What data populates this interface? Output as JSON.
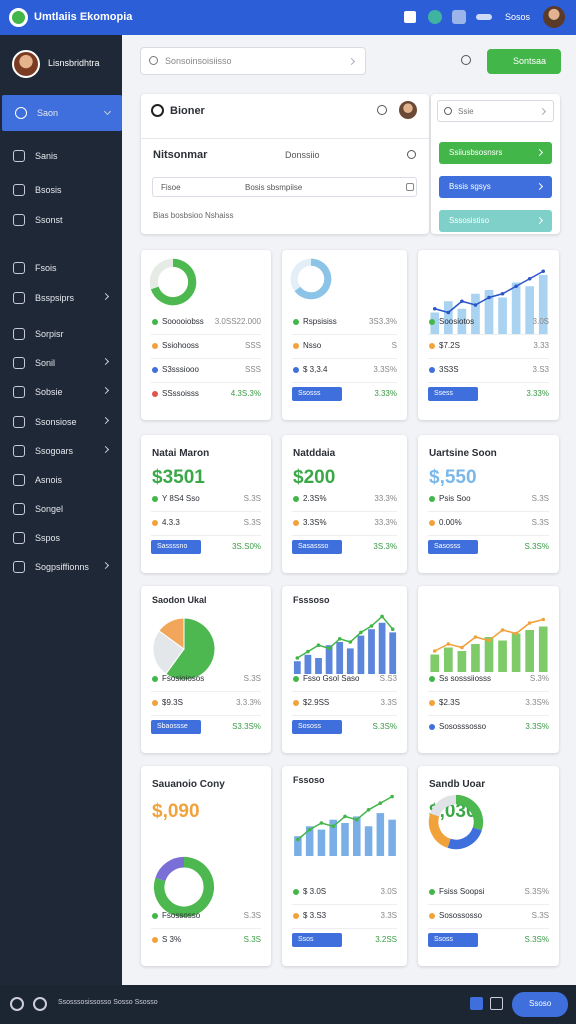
{
  "topbar": {
    "title": "Umtlaiis Ekomopia",
    "user_chip": "Sosos"
  },
  "profile": {
    "name": "Lisnsbridhtra"
  },
  "menu": [
    "Saon",
    "Sanis",
    "Bsosis",
    "Ssonst",
    "Fsois",
    "Bsspsiprs",
    "Sorpisr",
    "Sonil",
    "Sobsie",
    "Ssonsiose",
    "Ssogoars",
    "Asnois",
    "Songel",
    "Sspos",
    "Sogpsiffionns"
  ],
  "search": {
    "placeholder": "Sonsoinsoisiisso",
    "button": "Sontsaa"
  },
  "panel": {
    "title": "Bioner",
    "row_label": "Nitsonmar",
    "row_value": "Donssiio",
    "filter_left": "Fisoe",
    "filter_mid": "Bosis sbsmpiise",
    "footer": "Bias bosbsioo Nshaiss"
  },
  "side_panel": {
    "search": "Ssie",
    "buttons": [
      {
        "label": "Ssiiusbsosnsrs",
        "color": "#43b649"
      },
      {
        "label": "Bssis sgsys",
        "color": "#3f6fdc"
      },
      {
        "label": "Sssosistiso",
        "color": "#7fd0c8"
      }
    ]
  },
  "cards": [
    {
      "chart": {
        "kind": "donut",
        "values": [
          70,
          30
        ],
        "colors": [
          "#4cb84f",
          "#e6ebe6"
        ]
      },
      "rows": [
        {
          "label": "Sooooiobss",
          "value": "3.0SS22.000"
        },
        {
          "label": "Ssiohooss",
          "value": "SSS"
        },
        {
          "label": "S3sssiooo",
          "value": "SSS"
        },
        {
          "label": "SSssoisss",
          "value": "4.3S.3%"
        }
      ]
    },
    {
      "chart": {
        "kind": "donut",
        "values": [
          65,
          35
        ],
        "colors": [
          "#8cc4e8",
          "#e3eef6"
        ]
      },
      "rows": [
        {
          "label": "Rspsisiss",
          "value": "3S3.3%"
        },
        {
          "label": "Nsso",
          "value": "S"
        },
        {
          "label": "$ 3,3.4",
          "value": "3.3S%"
        },
        {
          "label": "Ssosss",
          "value": "3.33%",
          "pill": true
        }
      ]
    },
    {
      "chart": {
        "kind": "bars",
        "values": [
          30,
          45,
          35,
          55,
          60,
          50,
          70,
          65,
          80
        ],
        "color": "#a9d3f0",
        "line": [
          35,
          30,
          45,
          40,
          50,
          55,
          65,
          75,
          85
        ],
        "line_color": "#2b56c9"
      },
      "rows": [
        {
          "label": "Soosiotos",
          "value": "3.0S"
        },
        {
          "label": "$7.2S",
          "value": "3.33"
        },
        {
          "label": "3S3S",
          "value": "3.S3"
        },
        {
          "label": "Ssess",
          "value": "3.33%",
          "pill": true
        }
      ]
    },
    {
      "title": "Natai Maron",
      "big": "$3501",
      "big_color": "#3aa847",
      "rows": [
        {
          "label": "Y 8S4 Sso",
          "value": "S.3S"
        },
        {
          "label": "4.3.3",
          "value": "S.3S"
        },
        {
          "label": "Sassssno",
          "value": "3S.S0%",
          "pill": true
        }
      ]
    },
    {
      "title": "Natddaia",
      "big": "$200",
      "big_color": "#3aa847",
      "rows": [
        {
          "label": "2.3S%",
          "value": "33.3%"
        },
        {
          "label": "3.3S%",
          "value": "33.3%"
        },
        {
          "label": "Sasassso",
          "value": "3S.3%",
          "pill": true
        }
      ]
    },
    {
      "title": "Uartsine Soon",
      "big": "$,550",
      "big_color": "#7ab8ea",
      "rows": [
        {
          "label": "Psis Soo",
          "value": "S.3S"
        },
        {
          "label": "0.00%",
          "value": "S.3S"
        },
        {
          "label": "Sasosss",
          "value": "S.3S%",
          "pill": true
        }
      ]
    },
    {
      "title": "Saodon Ukal",
      "chart": {
        "kind": "pie",
        "values": [
          60,
          25,
          15
        ],
        "colors": [
          "#4cb84f",
          "#e4e7ea",
          "#f2a65a"
        ]
      },
      "rows": [
        {
          "label": "Fsosioiosos",
          "value": "S.3S"
        },
        {
          "label": "$9.3S",
          "value": "3.3.3%"
        },
        {
          "label": "Sbaossse",
          "value": "S3.3S%",
          "pill": true
        }
      ]
    },
    {
      "title": "Fsssoso",
      "chart": {
        "kind": "bars",
        "values": [
          20,
          30,
          25,
          45,
          50,
          40,
          60,
          70,
          80,
          65
        ],
        "color": "#5b86dc",
        "line": [
          25,
          35,
          45,
          40,
          55,
          50,
          65,
          75,
          90,
          70
        ],
        "line_color": "#43b649"
      },
      "rows": [
        {
          "label": "Fsso Gsol Saso",
          "value": "S.S3"
        },
        {
          "label": "$2.9SS",
          "value": "3.3S"
        },
        {
          "label": "Sososs",
          "value": "S.3S%",
          "pill": true
        }
      ]
    },
    {
      "chart": {
        "kind": "bars",
        "values": [
          25,
          35,
          30,
          40,
          50,
          45,
          55,
          60,
          65
        ],
        "color": "#7fcb6a",
        "line": [
          30,
          40,
          35,
          50,
          45,
          60,
          55,
          70,
          75
        ],
        "line_color": "#f2a03a"
      },
      "rows": [
        {
          "label": "Ss sosssiiosss",
          "value": "S.3%"
        },
        {
          "label": "$2.3S",
          "value": "3.3S%"
        },
        {
          "label": "Sososssosso",
          "value": "3.3S%"
        }
      ]
    },
    {
      "title": "Sauanoio Cony",
      "big": "$,090",
      "big_color": "#f2a23a",
      "chart": {
        "kind": "donut",
        "values": [
          80,
          20
        ],
        "colors": [
          "#4cb84f",
          "#7a6fd6"
        ]
      },
      "rows": [
        {
          "label": "Fsossosso",
          "value": "S.3S"
        },
        {
          "label": "S 3%",
          "value": "S.3S"
        }
      ]
    },
    {
      "title": "Fssoso",
      "chart": {
        "kind": "bars",
        "values": [
          30,
          45,
          40,
          55,
          50,
          60,
          45,
          65,
          55
        ],
        "color": "#7aaee6",
        "line": [
          25,
          40,
          50,
          45,
          60,
          55,
          70,
          80,
          90
        ],
        "line_color": "#43b649"
      },
      "rows": [
        {
          "label": "$ 3.0S",
          "value": "3.0S"
        },
        {
          "label": "$ 3.S3",
          "value": "3.3S"
        },
        {
          "label": "Ssos",
          "value": "3.2SS",
          "pill": true
        }
      ]
    },
    {
      "title": "Sandb Uoar",
      "big": "$,030",
      "big_color": "#3aa847",
      "chart": {
        "kind": "donut",
        "values": [
          30,
          25,
          25,
          20
        ],
        "colors": [
          "#4cb84f",
          "#3f6fdc",
          "#f2a23a",
          "#dfe3e8"
        ]
      },
      "rows": [
        {
          "label": "Fsiss Soopsi",
          "value": "S.3S%"
        },
        {
          "label": "Sosossosso",
          "value": "S.3S"
        },
        {
          "label": "Ssoss",
          "value": "S.3S%",
          "pill": true
        }
      ]
    }
  ],
  "footer": {
    "text": "Ssosssosissosso Sosso Ssosso",
    "button": "Ssoso"
  }
}
